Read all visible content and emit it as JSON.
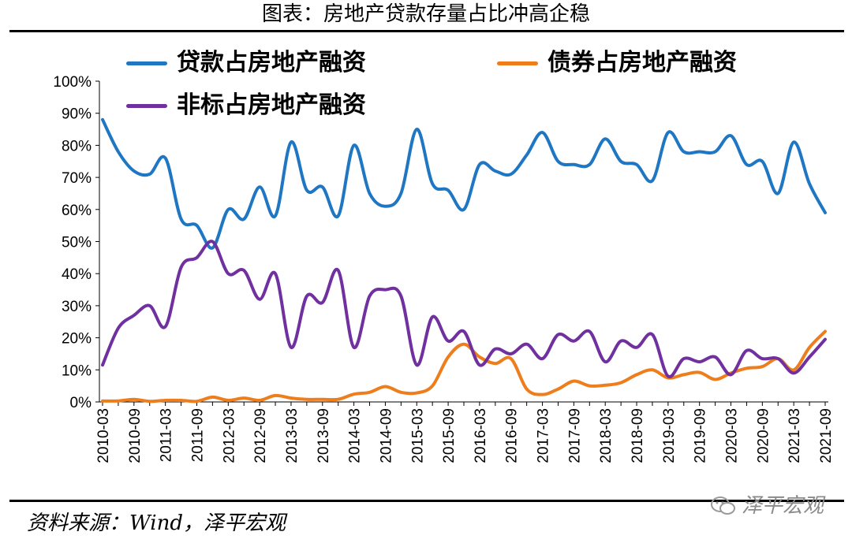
{
  "header": {
    "title": "图表：房地产贷款存量占比冲高企稳"
  },
  "footer": {
    "source": "资料来源：Wind，泽平宏观",
    "watermark": "泽平宏观"
  },
  "chart_data": {
    "type": "line",
    "title": "图表：房地产贷款存量占比冲高企稳",
    "xlabel": "",
    "ylabel": "",
    "ylim": [
      0,
      100
    ],
    "y_ticks": [
      "0%",
      "10%",
      "20%",
      "30%",
      "40%",
      "50%",
      "60%",
      "70%",
      "80%",
      "90%",
      "100%"
    ],
    "x_tick_labels": [
      "2010-03",
      "2010-09",
      "2011-03",
      "2011-09",
      "2012-03",
      "2012-09",
      "2013-03",
      "2013-09",
      "2014-03",
      "2014-09",
      "2015-03",
      "2015-09",
      "2016-03",
      "2016-09",
      "2017-03",
      "2017-09",
      "2018-03",
      "2018-09",
      "2019-03",
      "2019-09",
      "2020-03",
      "2020-09",
      "2021-03",
      "2021-09"
    ],
    "legend_position": "top",
    "x": [
      "2010-03",
      "2010-06",
      "2010-09",
      "2010-12",
      "2011-03",
      "2011-06",
      "2011-09",
      "2011-12",
      "2012-03",
      "2012-06",
      "2012-09",
      "2012-12",
      "2013-03",
      "2013-06",
      "2013-09",
      "2013-12",
      "2014-03",
      "2014-06",
      "2014-09",
      "2014-12",
      "2015-03",
      "2015-06",
      "2015-09",
      "2015-12",
      "2016-03",
      "2016-06",
      "2016-09",
      "2016-12",
      "2017-03",
      "2017-06",
      "2017-09",
      "2017-12",
      "2018-03",
      "2018-06",
      "2018-09",
      "2018-12",
      "2019-03",
      "2019-06",
      "2019-09",
      "2019-12",
      "2020-03",
      "2020-06",
      "2020-09",
      "2020-12",
      "2021-03",
      "2021-06",
      "2021-09"
    ],
    "series": [
      {
        "name": "贷款占房地产融资",
        "color": "#1f77c4",
        "values": [
          88,
          78,
          72,
          71,
          76,
          57,
          55,
          48,
          60,
          57,
          67,
          58,
          81,
          66,
          67,
          58,
          80,
          65,
          61,
          65,
          85,
          68,
          66,
          60,
          74,
          72,
          71,
          77,
          84,
          75,
          74,
          74,
          82,
          75,
          74,
          69,
          84,
          78,
          78,
          78,
          83,
          74,
          75,
          65,
          81,
          68,
          59
        ]
      },
      {
        "name": "债券占房地产融资",
        "color": "#ee7d1c",
        "values": [
          0.3,
          0.3,
          0.8,
          0.2,
          0.5,
          0.5,
          0.2,
          1.5,
          0.5,
          1.2,
          0.5,
          2,
          1.2,
          0.8,
          0.8,
          0.8,
          2.4,
          3,
          4.8,
          3,
          2.8,
          5,
          14,
          18,
          14,
          12,
          13.5,
          4,
          2.3,
          4,
          6.5,
          5,
          5.2,
          6,
          8.5,
          10,
          7.5,
          8.5,
          9.2,
          7,
          9,
          10.5,
          11,
          13.5,
          10,
          17,
          22
        ]
      },
      {
        "name": "非标占房地产融资",
        "color": "#7030a0",
        "values": [
          11.5,
          23,
          27,
          30,
          23.5,
          42,
          45,
          50,
          40,
          41,
          32,
          40,
          17,
          33,
          31,
          41,
          17,
          33,
          35,
          33,
          11.5,
          26.5,
          19,
          22,
          11.5,
          16.5,
          15,
          18,
          13.5,
          21,
          19,
          22,
          12.5,
          19,
          17,
          21,
          8,
          13.5,
          12.5,
          14,
          8.5,
          16,
          13.5,
          13.5,
          9,
          14,
          19.5
        ]
      }
    ]
  }
}
